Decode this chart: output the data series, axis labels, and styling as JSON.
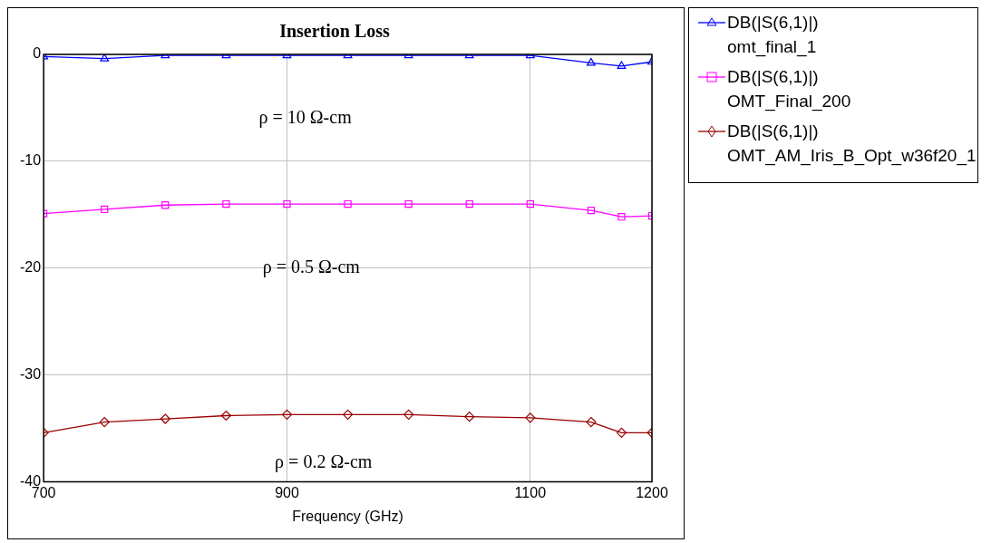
{
  "chart_data": {
    "type": "line",
    "title": "Insertion Loss",
    "xlabel": "Frequency (GHz)",
    "x": [
      700,
      750,
      800,
      850,
      900,
      950,
      1000,
      1050,
      1100,
      1150,
      1175,
      1200
    ],
    "series": [
      {
        "name": "DB(|S(6,1)|)\nomt_final_1",
        "color": "#0000ff",
        "marker": "triangle",
        "values": [
          -0.2,
          -0.4,
          -0.1,
          -0.1,
          -0.1,
          -0.1,
          -0.1,
          -0.1,
          -0.1,
          -0.8,
          -1.1,
          -0.7
        ]
      },
      {
        "name": "DB(|S(6,1)|)\nOMT_Final_200",
        "color": "#ff00ff",
        "marker": "square",
        "values": [
          -14.9,
          -14.5,
          -14.1,
          -14,
          -14,
          -14,
          -14,
          -14,
          -14,
          -14.6,
          -15.2,
          -15.1
        ]
      },
      {
        "name": "DB(|S(6,1)|)\nOMT_AM_Iris_B_Opt_w36f20_1",
        "color": "#990000",
        "marker": "diamond",
        "values": [
          -35.4,
          -34.4,
          -34.1,
          -33.8,
          -33.7,
          -33.7,
          -33.7,
          -33.9,
          -34,
          -34.4,
          -35.4,
          -35.4
        ]
      }
    ],
    "xlim": [
      700,
      1200
    ],
    "xticks": [
      700,
      900,
      1100,
      1200
    ],
    "ylim": [
      -40,
      0
    ],
    "yticks": [
      -40,
      -30,
      -20,
      -10,
      0
    ],
    "grid": true,
    "legend": "right",
    "line_style": "solid",
    "annotations": [
      "ρ = 10 Ω-cm",
      "ρ = 0.5 Ω-cm",
      "ρ = 0.2 Ω-cm"
    ]
  }
}
